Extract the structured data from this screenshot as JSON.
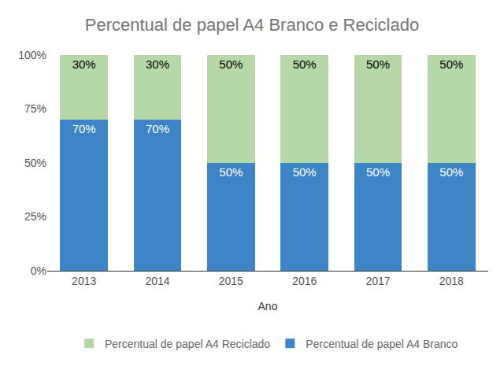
{
  "chart_data": {
    "type": "bar",
    "title": "Percentual de papel A4 Branco e Reciclado",
    "x_label": "Ano",
    "categories": [
      "2013",
      "2014",
      "2015",
      "2016",
      "2017",
      "2018"
    ],
    "stacked": true,
    "data_labels": true,
    "grid": false,
    "legend": "bottom",
    "ylim": [
      0,
      100
    ],
    "yticks": [
      {
        "value": 0,
        "label": "0%"
      },
      {
        "value": 25,
        "label": "25%"
      },
      {
        "value": 50,
        "label": "50%"
      },
      {
        "value": 75,
        "label": "75%"
      },
      {
        "value": 100,
        "label": "100%"
      }
    ],
    "series": [
      {
        "name": "Percentual de papel A4 Branco",
        "color": "#3d85c6",
        "values": [
          70,
          70,
          50,
          50,
          50,
          50
        ],
        "value_labels": [
          "70%",
          "70%",
          "50%",
          "50%",
          "50%",
          "50%"
        ]
      },
      {
        "name": "Percentual de papel A4 Reciclado",
        "color": "#b6d7a8",
        "values": [
          30,
          30,
          50,
          50,
          50,
          50
        ],
        "value_labels": [
          "30%",
          "30%",
          "50%",
          "50%",
          "50%",
          "50%"
        ]
      }
    ]
  }
}
